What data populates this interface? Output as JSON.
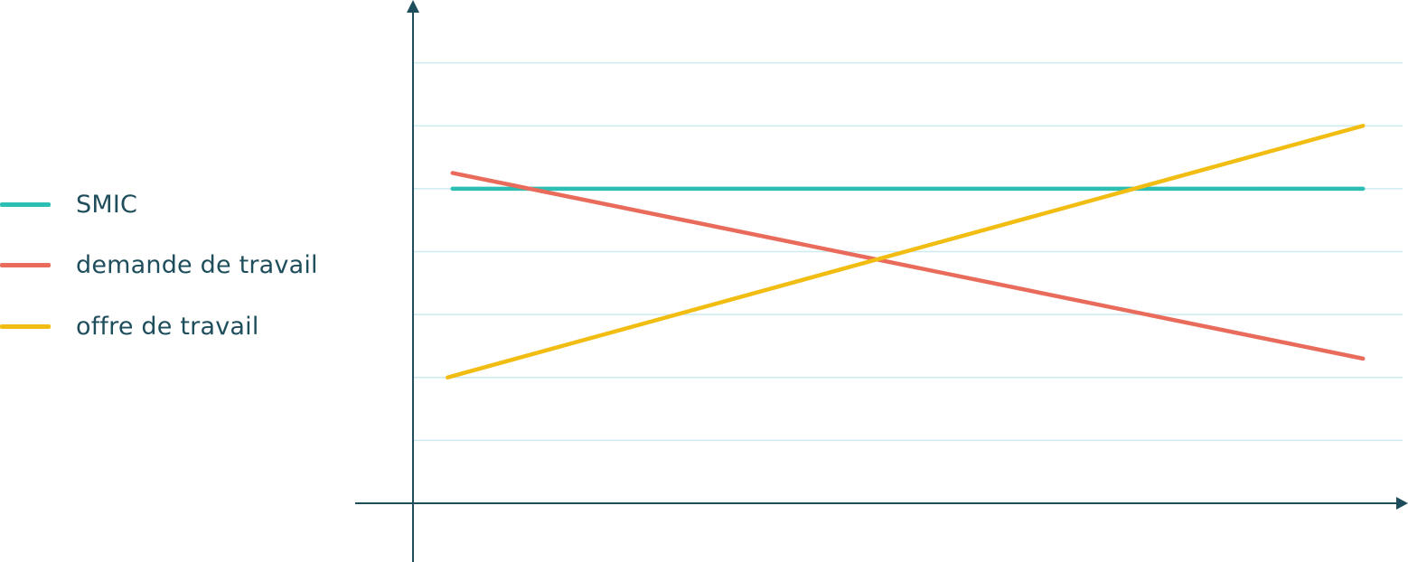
{
  "chart_data": {
    "type": "line",
    "title": "",
    "xlabel": "",
    "ylabel": "",
    "xlim": [
      0,
      1
    ],
    "ylim": [
      0,
      8
    ],
    "grid": "horizontal",
    "gridlines_y": [
      1,
      2,
      3,
      4,
      5,
      6,
      7
    ],
    "legend_placement": "left",
    "series": [
      {
        "name": "SMIC",
        "color": "#2bbfb3",
        "x": [
          0.04,
          0.96
        ],
        "y": [
          5.0,
          5.0
        ]
      },
      {
        "name": "demande de travail",
        "color": "#e96b5c",
        "x": [
          0.04,
          0.96
        ],
        "y": [
          5.25,
          2.3
        ]
      },
      {
        "name": "offre de travail",
        "color": "#f2bd12",
        "x": [
          0.035,
          0.96
        ],
        "y": [
          2.0,
          6.0
        ]
      }
    ]
  },
  "colors": {
    "axis": "#1e4d5c",
    "grid": "#cdebf0",
    "text": "#1e4d5c"
  }
}
